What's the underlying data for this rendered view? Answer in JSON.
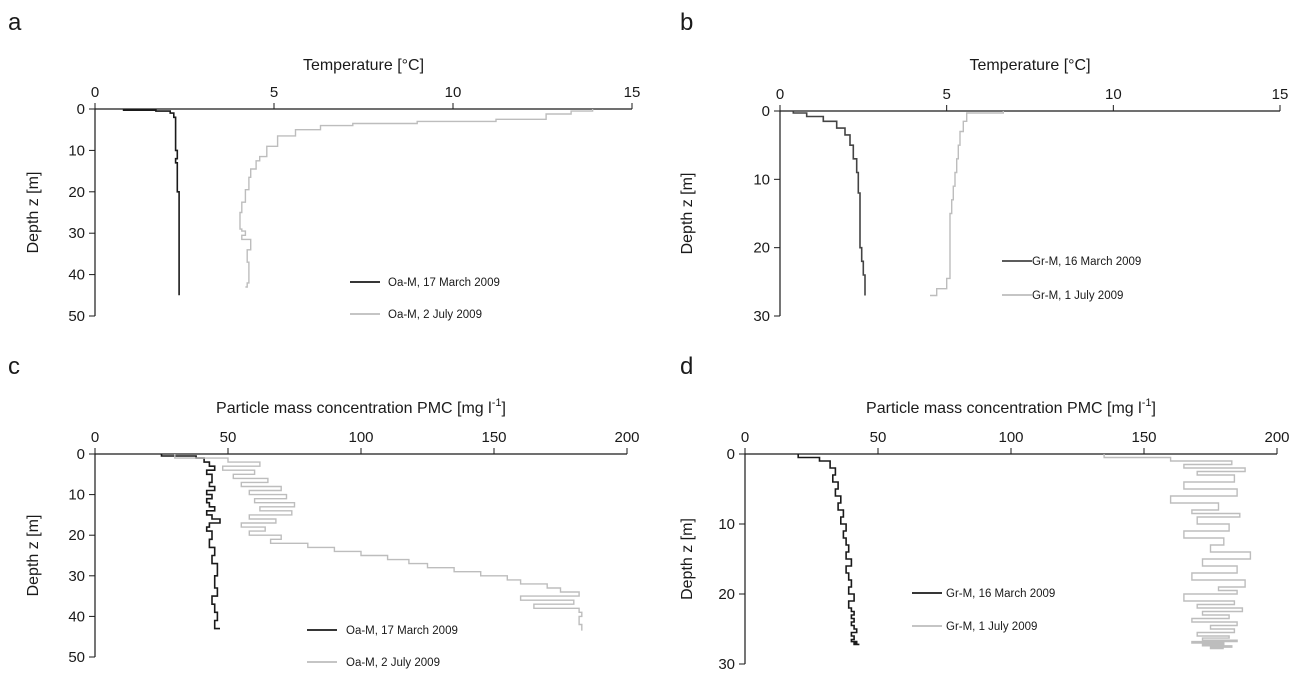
{
  "figure": {
    "chart_data": [
      {
        "panel": "a",
        "type": "line",
        "xlabel": "Temperature [°C]",
        "ylabel": "Depth z [m]",
        "xlim": [
          0,
          15
        ],
        "ylim": [
          50,
          0
        ],
        "xticks": [
          0,
          5,
          10,
          15
        ],
        "yticks": [
          0,
          10,
          20,
          30,
          40,
          50
        ],
        "series": [
          {
            "name": "Oa-M, 17 March 2009",
            "color": "#1a1a1a",
            "x": [
              0.8,
              1.7,
              2.1,
              2.2,
              2.25,
              2.25,
              2.3,
              2.25,
              2.3,
              2.3,
              2.35,
              2.35,
              2.35,
              2.35
            ],
            "y": [
              0,
              0.3,
              0.5,
              1,
              2,
              5,
              10,
              12,
              13,
              15,
              20,
              28,
              40,
              45
            ]
          },
          {
            "name": "Oa-M, 2 July 2009",
            "color": "#bdbdbd",
            "x": [
              13.9,
              13.3,
              12.6,
              11.2,
              9.0,
              7.2,
              6.3,
              5.6,
              5.1,
              4.8,
              4.6,
              4.5,
              4.35,
              4.3,
              4.2,
              4.1,
              4.05,
              4.05,
              4.1,
              4.2,
              4.1,
              4.35,
              4.25,
              4.3,
              4.3,
              4.25,
              4.2
            ],
            "y": [
              0,
              0.5,
              1.2,
              2.5,
              3.0,
              3.5,
              4.0,
              5.0,
              6.5,
              9.0,
              11.5,
              12.5,
              14.5,
              16.5,
              19.5,
              22.5,
              25.0,
              27.0,
              29.0,
              29.5,
              30.5,
              31.5,
              34.0,
              37.0,
              40.0,
              42.0,
              43.0
            ]
          }
        ]
      },
      {
        "panel": "b",
        "type": "line",
        "xlabel": "Temperature [°C]",
        "ylabel": "Depth z [m]",
        "xlim": [
          0,
          15
        ],
        "ylim": [
          30,
          0
        ],
        "xticks": [
          0,
          5,
          10,
          15
        ],
        "yticks": [
          0,
          10,
          20,
          30
        ],
        "series": [
          {
            "name": "Gr-M, 16 March 2009",
            "color": "#444444",
            "x": [
              0.4,
              0.8,
              1.3,
              1.7,
              1.95,
              2.1,
              2.2,
              2.3,
              2.35,
              2.4,
              2.4,
              2.45,
              2.5,
              2.55,
              2.55
            ],
            "y": [
              0,
              0.3,
              0.8,
              1.5,
              2.5,
              3.5,
              5.0,
              7.0,
              9.0,
              12.0,
              16.0,
              20.0,
              22.0,
              24.0,
              27.0
            ]
          },
          {
            "name": "Gr-M, 1 July 2009",
            "color": "#bdbdbd",
            "x": [
              6.7,
              5.6,
              5.5,
              5.4,
              5.35,
              5.3,
              5.25,
              5.2,
              5.15,
              5.1,
              5.1,
              5.1,
              5.1,
              5.0,
              4.7,
              4.5
            ],
            "y": [
              0,
              0.3,
              1.5,
              3.0,
              5.0,
              7.0,
              9.0,
              11.0,
              13.0,
              15.0,
              17.0,
              20.0,
              22.0,
              24.5,
              26.0,
              27.0
            ]
          }
        ]
      },
      {
        "panel": "c",
        "type": "line",
        "xlabel": "Particle mass concentration PMC [mg l",
        "xlabel_sup": "-1",
        "xlabel_end": "]",
        "ylabel": "Depth z [m]",
        "xlim": [
          0,
          200
        ],
        "ylim": [
          50,
          0
        ],
        "xticks": [
          0,
          50,
          100,
          150,
          200
        ],
        "yticks": [
          0,
          10,
          20,
          30,
          40,
          50
        ],
        "series": [
          {
            "name": "Oa-M, 17 March 2009",
            "color": "#1a1a1a",
            "x": [
              25,
              38,
              41,
              43,
              45,
              42,
              44,
              43,
              45,
              42,
              44,
              42,
              43,
              45,
              42,
              44,
              47,
              43,
              42,
              44,
              43,
              45,
              44,
              46,
              45,
              46,
              44,
              45,
              46,
              45,
              47
            ],
            "y": [
              0,
              0.5,
              1,
              2,
              3,
              4,
              5,
              7,
              8,
              9,
              10,
              11,
              12,
              13,
              14,
              15,
              16,
              17,
              18,
              19,
              21,
              23,
              25,
              27,
              30,
              33,
              35,
              37,
              39,
              41,
              43
            ]
          },
          {
            "name": "Oa-M, 2 July 2009",
            "color": "#bdbdbd",
            "x": [
              30,
              50,
              62,
              48,
              60,
              52,
              65,
              55,
              70,
              58,
              72,
              60,
              75,
              62,
              74,
              58,
              68,
              55,
              64,
              58,
              70,
              66,
              80,
              90,
              100,
              110,
              118,
              125,
              135,
              145,
              155,
              160,
              170,
              175,
              182,
              160,
              180,
              165,
              182,
              183,
              182,
              183,
              183
            ],
            "y": [
              0,
              1,
              2,
              3,
              4,
              5,
              6,
              7,
              8,
              9,
              10,
              11,
              12,
              13,
              14,
              15,
              16,
              17,
              18,
              19,
              20,
              21,
              22,
              23,
              24,
              25,
              26,
              27,
              28,
              29,
              30,
              31,
              32,
              33,
              34,
              35,
              36,
              37,
              38,
              39,
              40,
              42,
              43.5
            ]
          }
        ]
      },
      {
        "panel": "d",
        "type": "line",
        "xlabel": "Particle mass concentration PMC [mg l",
        "xlabel_sup": "-1",
        "xlabel_end": "]",
        "ylabel": "Depth z [m]",
        "xlim": [
          0,
          200
        ],
        "ylim": [
          30,
          0
        ],
        "xticks": [
          0,
          50,
          100,
          150,
          200
        ],
        "yticks": [
          0,
          10,
          20,
          30
        ],
        "series": [
          {
            "name": "Gr-M, 16 March 2009",
            "color": "#1a1a1a",
            "x": [
              20,
              28,
              32,
              34,
              33,
              35,
              34,
              36,
              35,
              37,
              36,
              38,
              37,
              38,
              39,
              38,
              40,
              38,
              39,
              40,
              39,
              41,
              39,
              40,
              41,
              40,
              41,
              40,
              41,
              42,
              40,
              41,
              40,
              42,
              41,
              43
            ],
            "y": [
              0,
              0.5,
              1,
              2,
              3,
              4,
              5,
              6,
              7,
              8,
              9,
              10,
              11,
              12,
              13,
              14,
              15,
              16,
              17,
              18,
              19,
              20,
              21,
              22,
              22.5,
              23,
              23.5,
              24,
              24.5,
              25,
              25.5,
              26,
              26.5,
              26.8,
              27,
              27.2
            ]
          },
          {
            "name": "Gr-M, 1 July 2009",
            "color": "#bdbdbd",
            "x": [
              135,
              160,
              183,
              165,
              188,
              170,
              184,
              165,
              185,
              160,
              178,
              168,
              186,
              170,
              182,
              165,
              180,
              175,
              190,
              172,
              185,
              168,
              188,
              178,
              185,
              165,
              184,
              170,
              187,
              172,
              182,
              168,
              185,
              175,
              184,
              170,
              182,
              172,
              185,
              168,
              180,
              172,
              183,
              175,
              180
            ],
            "y": [
              0,
              0.5,
              1,
              1.5,
              2,
              2.5,
              3,
              4,
              5,
              6,
              7,
              8,
              8.5,
              9,
              10,
              11,
              12,
              13,
              14,
              15,
              16,
              17,
              18,
              19,
              19.5,
              20,
              21,
              21.5,
              22,
              22.5,
              23,
              23.5,
              24,
              24.5,
              25,
              25.5,
              26,
              26.3,
              26.6,
              26.8,
              27,
              27.2,
              27.4,
              27.6,
              27.8
            ]
          }
        ]
      }
    ]
  }
}
